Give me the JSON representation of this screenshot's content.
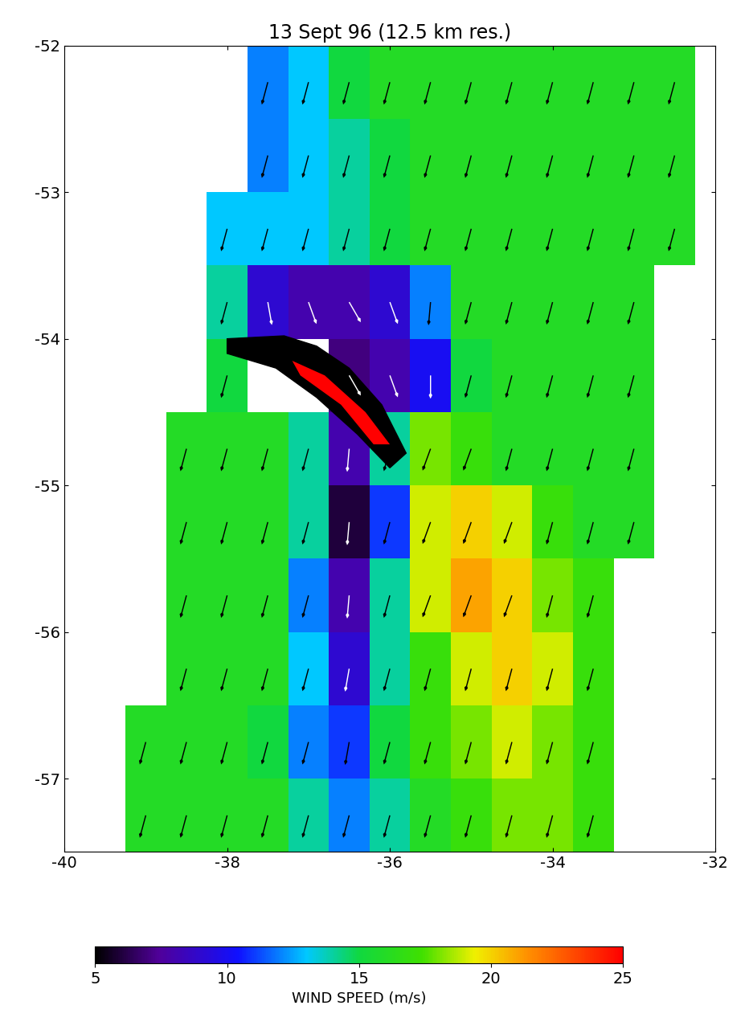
{
  "chart_data": {
    "type": "heatmap",
    "title": "13 Sept 96 (12.5 km res.)",
    "lon": [
      -39.5,
      -39.0,
      -38.5,
      -38.0,
      -37.5,
      -37.0,
      -36.5,
      -36.0,
      -35.5,
      -35.0,
      -34.5,
      -34.0,
      -33.5,
      -33.0,
      -32.5
    ],
    "lat": [
      -52.25,
      -52.75,
      -53.25,
      -53.75,
      -54.25,
      -54.75,
      -55.25,
      -55.75,
      -56.25,
      -56.75,
      -57.25
    ],
    "wind_speed": [
      [
        null,
        null,
        null,
        null,
        12,
        13,
        15,
        16,
        16,
        16,
        16,
        16,
        16,
        16,
        16
      ],
      [
        null,
        null,
        null,
        null,
        12,
        13,
        14,
        15,
        16,
        16,
        16,
        16,
        16,
        16,
        16
      ],
      [
        null,
        null,
        null,
        13,
        13,
        13,
        14,
        15,
        16,
        16,
        16,
        16,
        16,
        16,
        16
      ],
      [
        null,
        null,
        null,
        14,
        9,
        8,
        8,
        9,
        12,
        16,
        16,
        16,
        16,
        16,
        null
      ],
      [
        null,
        null,
        null,
        15,
        null,
        null,
        7,
        8,
        10,
        15,
        16,
        16,
        16,
        16,
        null
      ],
      [
        null,
        null,
        16,
        16,
        16,
        14,
        8,
        14,
        18,
        17,
        16,
        16,
        16,
        16,
        null
      ],
      [
        null,
        null,
        16,
        16,
        16,
        14,
        6,
        11,
        19,
        20,
        19,
        17,
        16,
        16,
        null
      ],
      [
        null,
        null,
        16,
        16,
        16,
        12,
        8,
        14,
        19,
        21,
        20,
        18,
        17,
        null,
        null
      ],
      [
        null,
        null,
        16,
        16,
        16,
        13,
        9,
        14,
        17,
        19,
        20,
        19,
        17,
        null,
        null
      ],
      [
        null,
        16,
        16,
        16,
        15,
        12,
        11,
        15,
        17,
        18,
        19,
        18,
        17,
        null,
        null
      ],
      [
        null,
        16,
        16,
        16,
        16,
        14,
        12,
        14,
        16,
        17,
        18,
        18,
        17,
        null,
        null
      ]
    ],
    "wind_direction": [
      [
        null,
        null,
        null,
        null,
        195,
        195,
        195,
        195,
        195,
        195,
        195,
        195,
        195,
        195,
        195
      ],
      [
        null,
        null,
        null,
        null,
        195,
        195,
        195,
        195,
        195,
        195,
        195,
        195,
        195,
        195,
        195
      ],
      [
        null,
        null,
        null,
        195,
        195,
        195,
        195,
        195,
        195,
        195,
        195,
        195,
        195,
        195,
        195
      ],
      [
        null,
        null,
        null,
        195,
        170,
        160,
        150,
        160,
        185,
        195,
        195,
        195,
        195,
        195,
        null
      ],
      [
        null,
        null,
        null,
        195,
        null,
        null,
        150,
        160,
        180,
        195,
        195,
        195,
        195,
        195,
        null
      ],
      [
        null,
        null,
        195,
        195,
        195,
        195,
        185,
        195,
        200,
        200,
        195,
        195,
        195,
        195,
        null
      ],
      [
        null,
        null,
        195,
        195,
        195,
        195,
        185,
        195,
        200,
        200,
        200,
        195,
        195,
        195,
        null
      ],
      [
        null,
        null,
        195,
        195,
        195,
        195,
        185,
        195,
        200,
        200,
        200,
        195,
        195,
        null,
        null
      ],
      [
        null,
        null,
        195,
        195,
        195,
        195,
        190,
        195,
        195,
        195,
        195,
        195,
        195,
        null,
        null
      ],
      [
        null,
        195,
        195,
        195,
        195,
        195,
        190,
        195,
        195,
        195,
        195,
        195,
        195,
        null,
        null
      ],
      [
        null,
        195,
        195,
        195,
        195,
        195,
        195,
        195,
        195,
        195,
        195,
        195,
        195,
        null,
        null
      ]
    ],
    "xlim": [
      -40,
      -32
    ],
    "xticks": [
      -40,
      -38,
      -36,
      -34,
      -32
    ],
    "ylim": [
      -57.5,
      -52
    ],
    "yticks": [
      -57,
      -56,
      -55,
      -54,
      -53,
      -52
    ],
    "colorbar_label": "WIND SPEED (m/s)",
    "colorbar_range": [
      5,
      25
    ],
    "colorbar_ticks": [
      5,
      10,
      15,
      20,
      25
    ]
  }
}
